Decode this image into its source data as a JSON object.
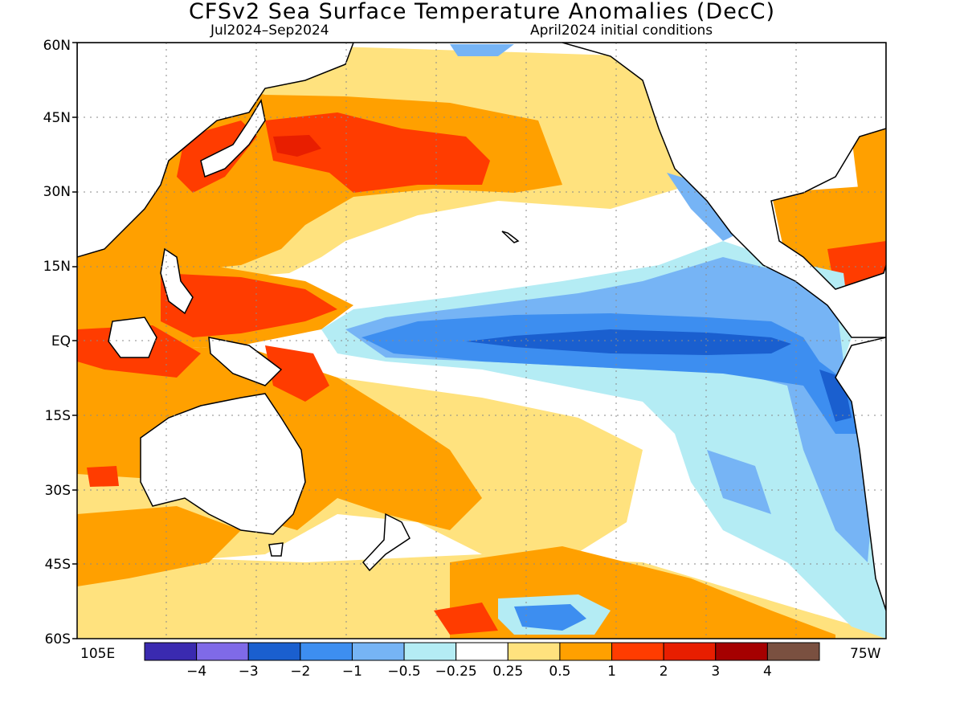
{
  "title": "CFSv2 Sea Surface Temperature Anomalies (DecC)",
  "period": "Jul2024–Sep2024",
  "initial_conditions": "April2024 initial conditions",
  "lat_labels": [
    "60N",
    "45N",
    "30N",
    "15N",
    "EQ",
    "15S",
    "30S",
    "45S",
    "60S"
  ],
  "lon_left": "105E",
  "lon_right": "75W",
  "colorbar": {
    "colors": [
      "#3a2ab0",
      "#7f6ae8",
      "#1a5fcf",
      "#3d8ef0",
      "#76b4f5",
      "#b4ecf4",
      "#ffffff",
      "#ffe27e",
      "#ffa000",
      "#ff3c00",
      "#e81e00",
      "#a50000",
      "#7a5040"
    ],
    "labels": [
      "−4",
      "−3",
      "−2",
      "−1",
      "−0.5",
      "−0.25",
      "0.25",
      "0.5",
      "1",
      "2",
      "3",
      "4"
    ]
  }
}
